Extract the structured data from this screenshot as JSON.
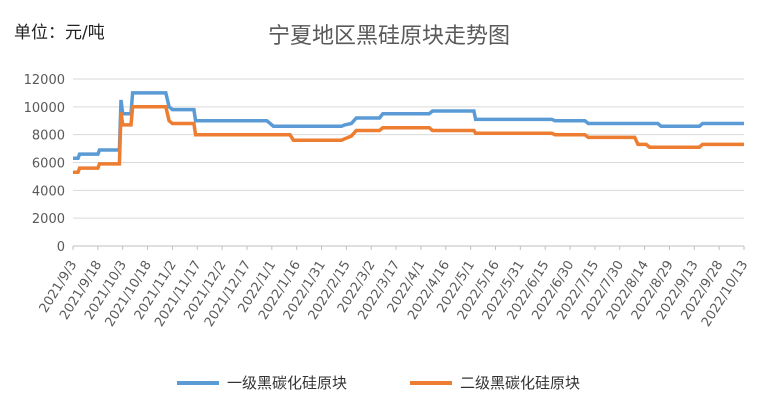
{
  "header": {
    "unit_label": "单位：元/吨",
    "title": "宁夏地区黑硅原块走势图"
  },
  "colors": {
    "series1": "#5B9BD5",
    "series2": "#ED7D31",
    "grid": "#D9D9D9"
  },
  "chart_data": {
    "type": "line",
    "title": "宁夏地区黑硅原块走势图",
    "ylabel": "单位：元/吨",
    "xlabel": "",
    "ylim": [
      0,
      12000
    ],
    "yticks": [
      0,
      2000,
      4000,
      6000,
      8000,
      10000,
      12000
    ],
    "grid": "horizontal",
    "legend_position": "bottom",
    "x_tick_labels": [
      "2021/9/3",
      "2021/9/18",
      "2021/10/3",
      "2021/10/18",
      "2021/11/2",
      "2021/11/17",
      "2021/12/2",
      "2021/12/17",
      "2022/1/1",
      "2022/1/16",
      "2022/1/31",
      "2022/2/15",
      "2022/3/2",
      "2022/3/17",
      "2022/4/1",
      "2022/4/16",
      "2022/5/1",
      "2022/5/16",
      "2022/5/31",
      "2022/6/15",
      "2022/6/30",
      "2022/7/15",
      "2022/7/30",
      "2022/8/14",
      "2022/8/29",
      "2022/9/13",
      "2022/9/28",
      "2022/10/13"
    ],
    "series": [
      {
        "name": "一级黑碳化硅原块",
        "points": [
          [
            "2021-09-03",
            6300
          ],
          [
            "2021-09-06",
            6300
          ],
          [
            "2021-09-07",
            6600
          ],
          [
            "2021-09-18",
            6600
          ],
          [
            "2021-09-19",
            6900
          ],
          [
            "2021-10-01",
            6900
          ],
          [
            "2021-10-02",
            10500
          ],
          [
            "2021-10-03",
            9500
          ],
          [
            "2021-10-08",
            9500
          ],
          [
            "2021-10-09",
            11000
          ],
          [
            "2021-10-29",
            11000
          ],
          [
            "2021-10-31",
            10000
          ],
          [
            "2021-11-02",
            9800
          ],
          [
            "2021-11-15",
            9800
          ],
          [
            "2021-11-16",
            9000
          ],
          [
            "2021-12-29",
            9000
          ],
          [
            "2021-12-31",
            8800
          ],
          [
            "2022-01-02",
            8600
          ],
          [
            "2022-02-12",
            8600
          ],
          [
            "2022-02-14",
            8700
          ],
          [
            "2022-02-18",
            8800
          ],
          [
            "2022-02-21",
            9200
          ],
          [
            "2022-03-07",
            9200
          ],
          [
            "2022-03-09",
            9500
          ],
          [
            "2022-04-06",
            9500
          ],
          [
            "2022-04-08",
            9700
          ],
          [
            "2022-05-03",
            9700
          ],
          [
            "2022-05-04",
            9100
          ],
          [
            "2022-06-19",
            9100
          ],
          [
            "2022-06-21",
            9000
          ],
          [
            "2022-07-09",
            9000
          ],
          [
            "2022-07-11",
            8800
          ],
          [
            "2022-08-22",
            8800
          ],
          [
            "2022-08-24",
            8600
          ],
          [
            "2022-09-16",
            8600
          ],
          [
            "2022-09-18",
            8800
          ],
          [
            "2022-10-13",
            8800
          ]
        ]
      },
      {
        "name": "二级黑碳化硅原块",
        "points": [
          [
            "2021-09-03",
            5300
          ],
          [
            "2021-09-06",
            5300
          ],
          [
            "2021-09-07",
            5600
          ],
          [
            "2021-09-18",
            5600
          ],
          [
            "2021-09-19",
            5900
          ],
          [
            "2021-10-01",
            5900
          ],
          [
            "2021-10-02",
            9600
          ],
          [
            "2021-10-03",
            8700
          ],
          [
            "2021-10-08",
            8700
          ],
          [
            "2021-10-09",
            10000
          ],
          [
            "2021-10-29",
            10000
          ],
          [
            "2021-10-31",
            9000
          ],
          [
            "2021-11-02",
            8800
          ],
          [
            "2021-11-15",
            8800
          ],
          [
            "2021-11-16",
            8000
          ],
          [
            "2022-01-12",
            8000
          ],
          [
            "2022-01-14",
            7600
          ],
          [
            "2022-02-12",
            7600
          ],
          [
            "2022-02-14",
            7700
          ],
          [
            "2022-02-18",
            7900
          ],
          [
            "2022-02-21",
            8300
          ],
          [
            "2022-03-07",
            8300
          ],
          [
            "2022-03-09",
            8500
          ],
          [
            "2022-04-06",
            8500
          ],
          [
            "2022-04-08",
            8300
          ],
          [
            "2022-05-03",
            8300
          ],
          [
            "2022-05-04",
            8100
          ],
          [
            "2022-06-19",
            8100
          ],
          [
            "2022-06-21",
            8000
          ],
          [
            "2022-07-09",
            8000
          ],
          [
            "2022-07-11",
            7800
          ],
          [
            "2022-08-08",
            7800
          ],
          [
            "2022-08-10",
            7300
          ],
          [
            "2022-08-15",
            7300
          ],
          [
            "2022-08-17",
            7100
          ],
          [
            "2022-09-16",
            7100
          ],
          [
            "2022-09-18",
            7300
          ],
          [
            "2022-10-13",
            7300
          ]
        ]
      }
    ]
  }
}
